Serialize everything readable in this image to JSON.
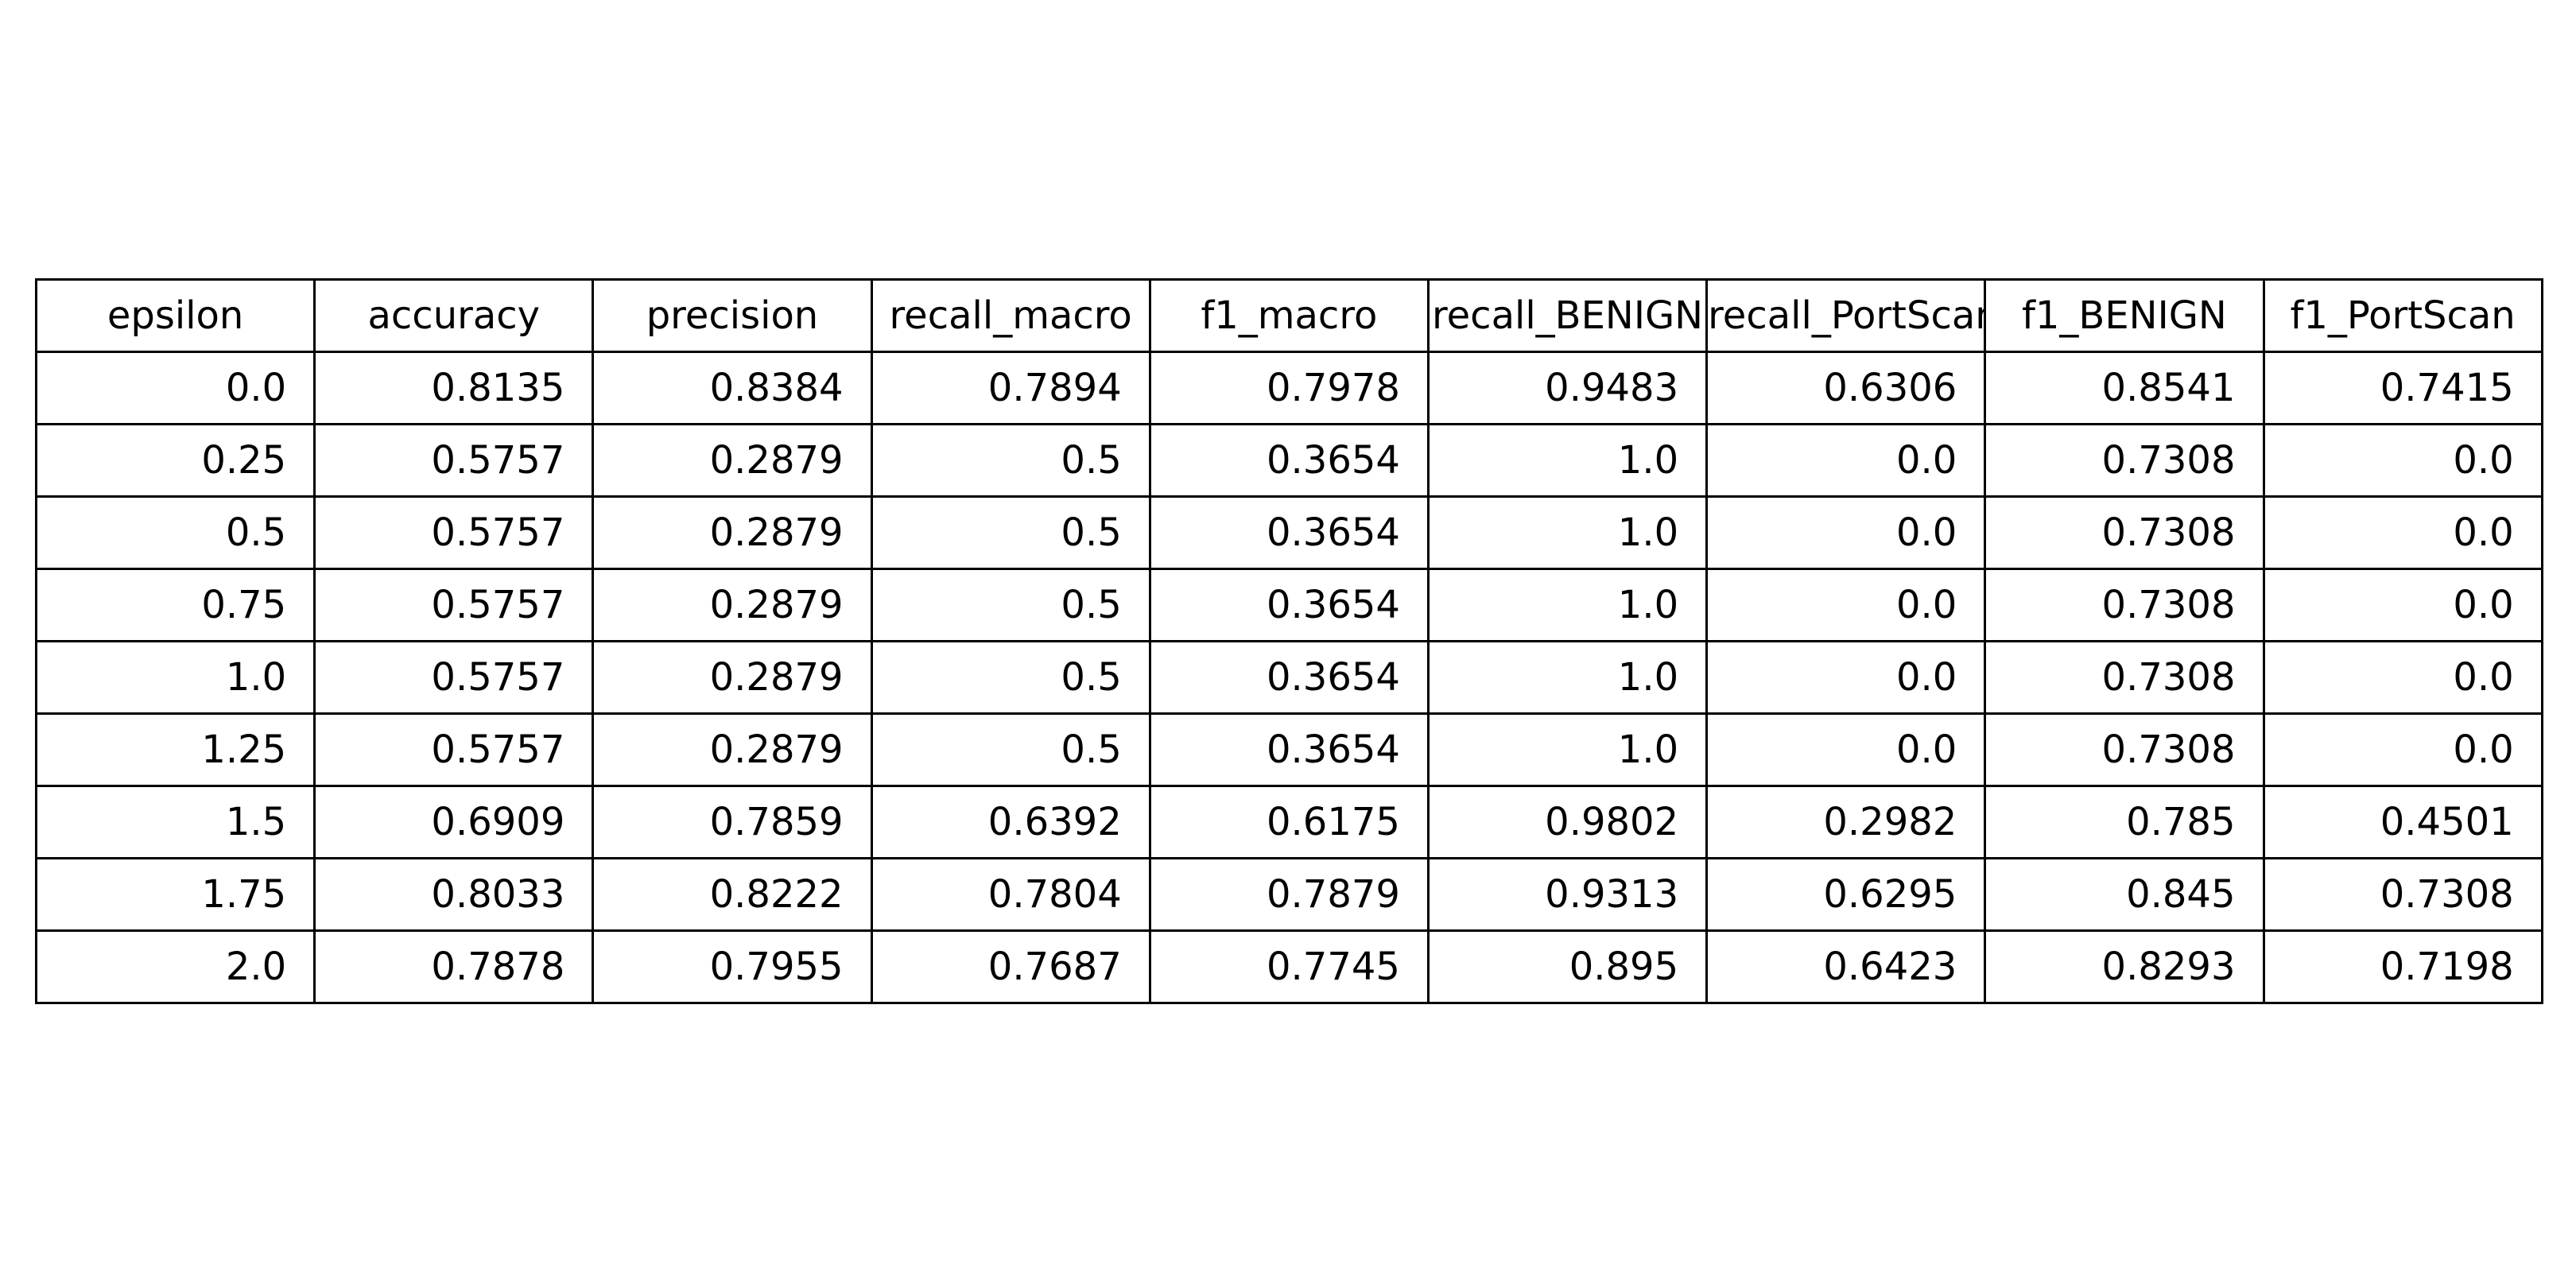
{
  "chart_data": {
    "type": "table",
    "columns": [
      "epsilon",
      "accuracy",
      "precision",
      "recall_macro",
      "f1_macro",
      "recall_BENIGN",
      "recall_PortScan",
      "f1_BENIGN",
      "f1_PortScan"
    ],
    "rows": [
      [
        "0.0",
        "0.8135",
        "0.8384",
        "0.7894",
        "0.7978",
        "0.9483",
        "0.6306",
        "0.8541",
        "0.7415"
      ],
      [
        "0.25",
        "0.5757",
        "0.2879",
        "0.5",
        "0.3654",
        "1.0",
        "0.0",
        "0.7308",
        "0.0"
      ],
      [
        "0.5",
        "0.5757",
        "0.2879",
        "0.5",
        "0.3654",
        "1.0",
        "0.0",
        "0.7308",
        "0.0"
      ],
      [
        "0.75",
        "0.5757",
        "0.2879",
        "0.5",
        "0.3654",
        "1.0",
        "0.0",
        "0.7308",
        "0.0"
      ],
      [
        "1.0",
        "0.5757",
        "0.2879",
        "0.5",
        "0.3654",
        "1.0",
        "0.0",
        "0.7308",
        "0.0"
      ],
      [
        "1.25",
        "0.5757",
        "0.2879",
        "0.5",
        "0.3654",
        "1.0",
        "0.0",
        "0.7308",
        "0.0"
      ],
      [
        "1.5",
        "0.6909",
        "0.7859",
        "0.6392",
        "0.6175",
        "0.9802",
        "0.2982",
        "0.785",
        "0.4501"
      ],
      [
        "1.75",
        "0.8033",
        "0.8222",
        "0.7804",
        "0.7879",
        "0.9313",
        "0.6295",
        "0.845",
        "0.7308"
      ],
      [
        "2.0",
        "0.7878",
        "0.7955",
        "0.7687",
        "0.7745",
        "0.895",
        "0.6423",
        "0.8293",
        "0.7198"
      ]
    ],
    "grid": true,
    "colors": {
      "border": "#000000",
      "text": "#000000",
      "background": "#ffffff"
    }
  }
}
